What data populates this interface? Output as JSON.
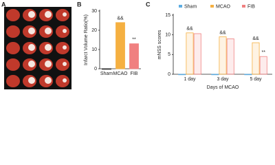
{
  "panel_labels": [
    "A",
    "B",
    "C"
  ],
  "chart_data": [
    {
      "type": "bar",
      "ylabel": "Infarct Volume Ratio(%)",
      "categories": [
        "Sham",
        "MCAO",
        "FIB"
      ],
      "series": [
        {
          "name": null,
          "values": [
            0,
            24,
            13
          ],
          "colors": [
            "#222222",
            "#f5b041",
            "#f08080"
          ],
          "annotations": [
            null,
            "&&",
            "**"
          ]
        }
      ],
      "ylim": [
        0,
        30
      ],
      "yticks": [
        0,
        10,
        20,
        30
      ],
      "filled": true,
      "legend": false
    },
    {
      "type": "bar",
      "ylabel": "mNSS scores",
      "xlabel": "Days of MCAO",
      "categories": [
        "1 day",
        "3 day",
        "5 day"
      ],
      "series": [
        {
          "name": "Sham",
          "color": "#5dade2",
          "values": [
            0,
            0,
            0
          ],
          "annotations": [
            null,
            null,
            null
          ]
        },
        {
          "name": "MCAO",
          "color": "#f5b041",
          "values": [
            10.5,
            9.5,
            8
          ],
          "annotations": [
            "&&",
            "&&",
            "&&"
          ]
        },
        {
          "name": "FIB",
          "color": "#f08080",
          "values": [
            10.3,
            9,
            4.5
          ],
          "annotations": [
            null,
            null,
            "**"
          ]
        }
      ],
      "ylim": [
        0,
        15
      ],
      "yticks": [
        0,
        5,
        10,
        15
      ],
      "filled": false,
      "legend": "top"
    }
  ]
}
